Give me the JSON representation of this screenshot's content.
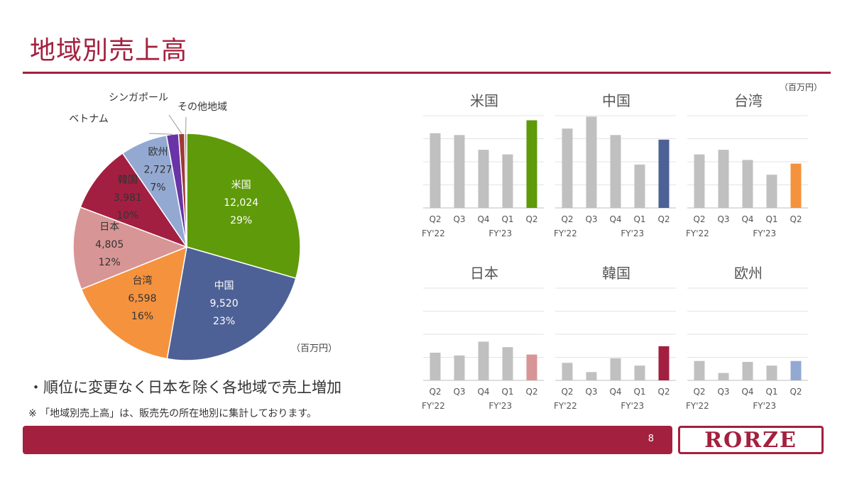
{
  "title": "地域別売上高",
  "unit_label": "（百万円）",
  "unit_label_small": "（百万円）",
  "bullet": "・順位に変更なく日本を除く各地域で売上増加",
  "note": "※ 「地域別売上高」は、販売先の所在地別に集計しております。",
  "page_number": "8",
  "logo_text": "RORZE",
  "colors": {
    "accent": "#a3203e",
    "gray_bar": "#c0c0c0",
    "us": "#5f9a0a",
    "china": "#4e6196",
    "taiwan": "#f5923e",
    "japan": "#d89595",
    "korea": "#a31f41",
    "europe": "#93a9d2",
    "vietnam": "#6a33a6",
    "singapore": "#9e3a34",
    "other": "#7f7f7f"
  },
  "chart_data": [
    {
      "type": "pie",
      "slices": [
        {
          "label": "米国",
          "value": 12024,
          "value_text": "12,024",
          "pct_text": "29%",
          "color": "#5f9a0a",
          "label_color": "#ffffff"
        },
        {
          "label": "中国",
          "value": 9520,
          "value_text": "9,520",
          "pct_text": "23%",
          "color": "#4e6196",
          "label_color": "#ffffff"
        },
        {
          "label": "台湾",
          "value": 6598,
          "value_text": "6,598",
          "pct_text": "16%",
          "color": "#f5923e",
          "label_color": "#333333"
        },
        {
          "label": "日本",
          "value": 4805,
          "value_text": "4,805",
          "pct_text": "12%",
          "color": "#d89595",
          "label_color": "#333333"
        },
        {
          "label": "韓国",
          "value": 3981,
          "value_text": "3,981",
          "pct_text": "10%",
          "color": "#a31f41",
          "label_color": "#333333"
        },
        {
          "label": "欧州",
          "value": 2727,
          "value_text": "2,727",
          "pct_text": "7%",
          "color": "#93a9d2",
          "label_color": "#333333"
        },
        {
          "label": "ベトナム",
          "value": 700,
          "color": "#6a33a6"
        },
        {
          "label": "シンガポール",
          "value": 350,
          "color": "#9e3a34"
        },
        {
          "label": "その他地域",
          "value": 120,
          "color": "#7f7f7f"
        }
      ]
    },
    {
      "type": "bar",
      "title": "米国",
      "categories": [
        "Q2",
        "Q3",
        "Q4",
        "Q1",
        "Q2"
      ],
      "fy_labels": [
        "FY'22",
        "FY'23"
      ],
      "values": [
        8.1,
        7.9,
        6.3,
        5.8,
        9.5
      ],
      "ylim": [
        0,
        10
      ],
      "highlight_color": "#5f9a0a"
    },
    {
      "type": "bar",
      "title": "中国",
      "categories": [
        "Q2",
        "Q3",
        "Q4",
        "Q1",
        "Q2"
      ],
      "fy_labels": [
        "FY'22",
        "FY'23"
      ],
      "values": [
        8.6,
        9.9,
        7.9,
        4.7,
        7.4
      ],
      "ylim": [
        0,
        10
      ],
      "highlight_color": "#4e6196"
    },
    {
      "type": "bar",
      "title": "台湾",
      "categories": [
        "Q2",
        "Q3",
        "Q4",
        "Q1",
        "Q2"
      ],
      "fy_labels": [
        "FY'22",
        "FY'23"
      ],
      "values": [
        5.8,
        6.3,
        5.2,
        3.6,
        4.8
      ],
      "ylim": [
        0,
        10
      ],
      "highlight_color": "#f5923e"
    },
    {
      "type": "bar",
      "title": "日本",
      "categories": [
        "Q2",
        "Q3",
        "Q4",
        "Q1",
        "Q2"
      ],
      "fy_labels": [
        "FY'22",
        "FY'23"
      ],
      "values": [
        3.0,
        2.7,
        4.2,
        3.6,
        2.8
      ],
      "ylim": [
        0,
        10
      ],
      "highlight_color": "#d89595"
    },
    {
      "type": "bar",
      "title": "韓国",
      "categories": [
        "Q2",
        "Q3",
        "Q4",
        "Q1",
        "Q2"
      ],
      "fy_labels": [
        "FY'22",
        "FY'23"
      ],
      "values": [
        1.9,
        0.9,
        2.4,
        1.6,
        3.7
      ],
      "ylim": [
        0,
        10
      ],
      "highlight_color": "#a31f41"
    },
    {
      "type": "bar",
      "title": "欧州",
      "categories": [
        "Q2",
        "Q3",
        "Q4",
        "Q1",
        "Q2"
      ],
      "fy_labels": [
        "FY'22",
        "FY'23"
      ],
      "values": [
        2.1,
        0.8,
        2.0,
        1.6,
        2.1
      ],
      "ylim": [
        0,
        10
      ],
      "highlight_color": "#93a9d2"
    }
  ]
}
